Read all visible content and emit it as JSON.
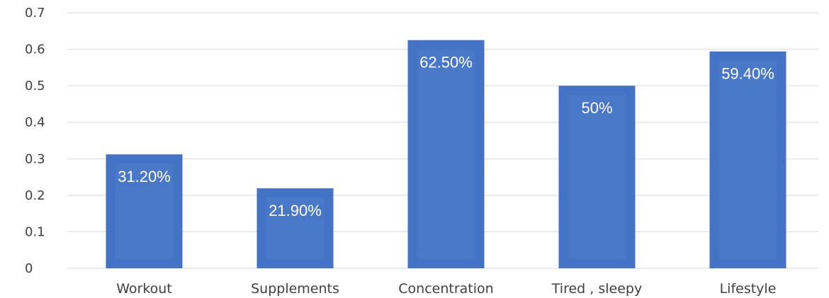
{
  "chart_data": {
    "type": "bar",
    "categories": [
      "Workout",
      "Supplements",
      "Concentration",
      "Tired , sleepy",
      "Lifestyle"
    ],
    "values": [
      0.312,
      0.219,
      0.625,
      0.5,
      0.594
    ],
    "data_labels": [
      "31.20%",
      "21.90%",
      "62.50%",
      "50%",
      "59.40%"
    ],
    "yticks": [
      "0",
      "0.1",
      "0.2",
      "0.3",
      "0.4",
      "0.5",
      "0.6",
      "0.7"
    ],
    "ylim": [
      0,
      0.7
    ],
    "title": "",
    "xlabel": "",
    "ylabel": "",
    "grid": true,
    "bar_color": "#4472c4"
  }
}
